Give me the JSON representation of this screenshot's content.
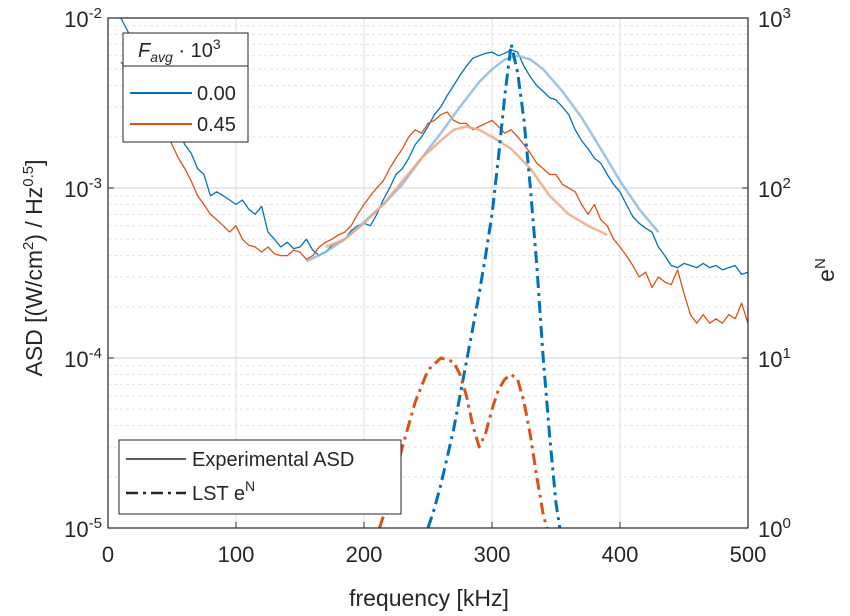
{
  "chart_data": {
    "type": "line",
    "xlabel": "frequency [kHz]",
    "ylabel_left": "ASD [(W/cm2) / Hz0.5]",
    "ylabel_right": "eN",
    "xlim": [
      0,
      500
    ],
    "ylim_left": [
      1e-05,
      0.01
    ],
    "ylim_right": [
      1,
      1000
    ],
    "yscale": "log",
    "grid": true,
    "x_ticks": [
      "0",
      "100",
      "200",
      "300",
      "400",
      "500"
    ],
    "y_ticks_left": [
      {
        "base": "10",
        "exp": "-5"
      },
      {
        "base": "10",
        "exp": "-4"
      },
      {
        "base": "10",
        "exp": "-3"
      },
      {
        "base": "10",
        "exp": "-2"
      }
    ],
    "y_ticks_right": [
      {
        "base": "10",
        "exp": "0"
      },
      {
        "base": "10",
        "exp": "1"
      },
      {
        "base": "10",
        "exp": "2"
      },
      {
        "base": "10",
        "exp": "3"
      }
    ],
    "legend_top": {
      "title": "F_avg · 10^3",
      "placement": "top-left",
      "entries": [
        {
          "label": "0.00",
          "color": "#0072BD"
        },
        {
          "label": "0.45",
          "color": "#D95319"
        }
      ]
    },
    "legend_bottom": {
      "placement": "bottom-left",
      "entries": [
        {
          "label": "Experimental ASD",
          "style": "solid"
        },
        {
          "label": "LST eN",
          "style": "dashdot"
        }
      ]
    },
    "series": [
      {
        "name": "0.00",
        "kind": "Experimental ASD",
        "axis": "left",
        "color": "#0072BD",
        "x": [
          10,
          15,
          20,
          25,
          30,
          35,
          40,
          45,
          50,
          55,
          60,
          65,
          70,
          75,
          80,
          85,
          90,
          95,
          100,
          105,
          110,
          115,
          120,
          125,
          130,
          135,
          140,
          145,
          150,
          155,
          160,
          165,
          170,
          175,
          180,
          185,
          190,
          195,
          200,
          205,
          210,
          215,
          220,
          225,
          230,
          235,
          240,
          245,
          250,
          255,
          260,
          265,
          270,
          275,
          280,
          285,
          290,
          295,
          300,
          305,
          310,
          315,
          320,
          325,
          330,
          335,
          340,
          345,
          350,
          355,
          360,
          365,
          370,
          375,
          380,
          385,
          390,
          395,
          400,
          405,
          410,
          415,
          420,
          425,
          430,
          435,
          440,
          445,
          450,
          455,
          460,
          465,
          470,
          475,
          480,
          485,
          490,
          495,
          500
        ],
        "y": [
          0.01,
          0.0085,
          0.007,
          0.006,
          0.0055,
          0.005,
          0.0042,
          0.0035,
          0.0028,
          0.0022,
          0.0018,
          0.0016,
          0.0013,
          0.0012,
          0.0009,
          0.00095,
          0.0009,
          0.00085,
          0.0008,
          0.00085,
          0.00075,
          0.0007,
          0.00078,
          0.00055,
          0.0005,
          0.00045,
          0.00048,
          0.00044,
          0.00045,
          0.0005,
          0.00043,
          0.0004,
          0.00042,
          0.00046,
          0.00048,
          0.0005,
          0.00056,
          0.0006,
          0.00062,
          0.0006,
          0.0007,
          0.00085,
          0.001,
          0.0012,
          0.0013,
          0.0015,
          0.0018,
          0.002,
          0.0023,
          0.0027,
          0.003,
          0.0035,
          0.004,
          0.0046,
          0.0052,
          0.0058,
          0.006,
          0.0062,
          0.0063,
          0.006,
          0.0062,
          0.0065,
          0.0063,
          0.0052,
          0.0045,
          0.004,
          0.0037,
          0.0034,
          0.0033,
          0.003,
          0.0027,
          0.0022,
          0.0019,
          0.0017,
          0.0015,
          0.0014,
          0.0012,
          0.00105,
          0.00095,
          0.0008,
          0.00068,
          0.00062,
          0.00058,
          0.00055,
          0.00045,
          0.0004,
          0.00035,
          0.00034,
          0.00036,
          0.00035,
          0.00034,
          0.00036,
          0.00034,
          0.00035,
          0.00033,
          0.00034,
          0.00035,
          0.00031,
          0.00032
        ]
      },
      {
        "name": "0.45",
        "kind": "Experimental ASD",
        "axis": "left",
        "color": "#D95319",
        "x": [
          10,
          15,
          20,
          25,
          30,
          35,
          40,
          45,
          50,
          55,
          60,
          65,
          70,
          75,
          80,
          85,
          90,
          95,
          100,
          105,
          110,
          115,
          120,
          125,
          130,
          135,
          140,
          145,
          150,
          155,
          160,
          165,
          170,
          175,
          180,
          185,
          190,
          195,
          200,
          205,
          210,
          215,
          220,
          225,
          230,
          235,
          240,
          245,
          250,
          255,
          260,
          265,
          270,
          275,
          280,
          285,
          290,
          295,
          300,
          305,
          310,
          315,
          320,
          325,
          330,
          335,
          340,
          345,
          350,
          355,
          360,
          365,
          370,
          375,
          380,
          385,
          390,
          395,
          400,
          405,
          410,
          415,
          420,
          425,
          430,
          435,
          440,
          445,
          450,
          455,
          460,
          465,
          470,
          475,
          480,
          485,
          490,
          495,
          500
        ],
        "y": [
          0.0055,
          0.005,
          0.0045,
          0.0037,
          0.003,
          0.0025,
          0.0022,
          0.0022,
          0.0018,
          0.0015,
          0.0013,
          0.0011,
          0.0009,
          0.0008,
          0.0007,
          0.00065,
          0.0006,
          0.00055,
          0.0006,
          0.0005,
          0.00046,
          0.00045,
          0.00042,
          0.00045,
          0.00041,
          0.0004,
          0.0004,
          0.00043,
          0.00042,
          0.00038,
          0.0004,
          0.00045,
          0.00048,
          0.0005,
          0.00053,
          0.00055,
          0.0006,
          0.0007,
          0.0008,
          0.0009,
          0.001,
          0.0011,
          0.0013,
          0.0015,
          0.0017,
          0.002,
          0.0022,
          0.0021,
          0.0024,
          0.0025,
          0.0027,
          0.0028,
          0.0025,
          0.0024,
          0.0024,
          0.0022,
          0.0023,
          0.0024,
          0.0025,
          0.0023,
          0.0021,
          0.0022,
          0.002,
          0.0018,
          0.0016,
          0.0014,
          0.0013,
          0.0012,
          0.0012,
          0.00105,
          0.001,
          0.00095,
          0.0008,
          0.0007,
          0.0008,
          0.00065,
          0.0006,
          0.0005,
          0.00045,
          0.0004,
          0.00035,
          0.0003,
          0.00032,
          0.00026,
          0.0003,
          0.00028,
          0.00027,
          0.00033,
          0.00024,
          0.00018,
          0.00016,
          0.00018,
          0.00016,
          0.00017,
          0.00016,
          0.00018,
          0.00017,
          0.00021,
          0.00016
        ]
      },
      {
        "name": "0.00",
        "kind": "fit",
        "axis": "left",
        "color": "#8DB9E2",
        "x": [
          155,
          170,
          185,
          200,
          215,
          230,
          245,
          260,
          275,
          290,
          300,
          310,
          320,
          330,
          340,
          355,
          370,
          385,
          400,
          415,
          430
        ],
        "y": [
          0.00037,
          0.00042,
          0.0005,
          0.00063,
          0.0008,
          0.00105,
          0.0015,
          0.0021,
          0.003,
          0.0042,
          0.005,
          0.0057,
          0.006,
          0.0057,
          0.005,
          0.0037,
          0.0026,
          0.0017,
          0.0011,
          0.00075,
          0.00055
        ]
      },
      {
        "name": "0.45",
        "kind": "fit",
        "axis": "left",
        "color": "#F0A880",
        "x": [
          170,
          185,
          200,
          215,
          230,
          245,
          260,
          270,
          280,
          290,
          300,
          315,
          330,
          345,
          360,
          375,
          390
        ],
        "y": [
          0.00045,
          0.0005,
          0.00062,
          0.0008,
          0.0011,
          0.0015,
          0.0019,
          0.0022,
          0.0023,
          0.0022,
          0.002,
          0.0017,
          0.0013,
          0.0009,
          0.0007,
          0.0006,
          0.00053
        ]
      },
      {
        "name": "0.00",
        "kind": "LST eN",
        "axis": "right",
        "color": "#0072BD",
        "x": [
          250,
          255,
          260,
          265,
          270,
          275,
          280,
          285,
          290,
          295,
          300,
          305,
          310,
          315,
          320,
          325,
          330,
          335,
          340,
          345,
          350,
          353
        ],
        "y": [
          1.0,
          1.3,
          1.8,
          2.6,
          3.8,
          6.0,
          9.5,
          15.0,
          24.0,
          40.0,
          70.0,
          150.0,
          350.0,
          700.0,
          480.0,
          250.0,
          100.0,
          35.0,
          10.0,
          3.5,
          1.4,
          1.0
        ]
      },
      {
        "name": "0.45",
        "kind": "LST eN",
        "axis": "right",
        "color": "#D95319",
        "x": [
          212,
          220,
          230,
          240,
          250,
          260,
          270,
          275,
          280,
          285,
          290,
          295,
          300,
          305,
          310,
          315,
          320,
          325,
          330,
          335,
          340,
          343
        ],
        "y": [
          1.0,
          1.5,
          3.0,
          5.5,
          8.5,
          10.0,
          9.5,
          8.0,
          6.0,
          4.0,
          3.0,
          3.6,
          5.0,
          6.5,
          7.5,
          8.0,
          7.5,
          5.5,
          3.5,
          2.0,
          1.2,
          1.0
        ]
      }
    ]
  }
}
